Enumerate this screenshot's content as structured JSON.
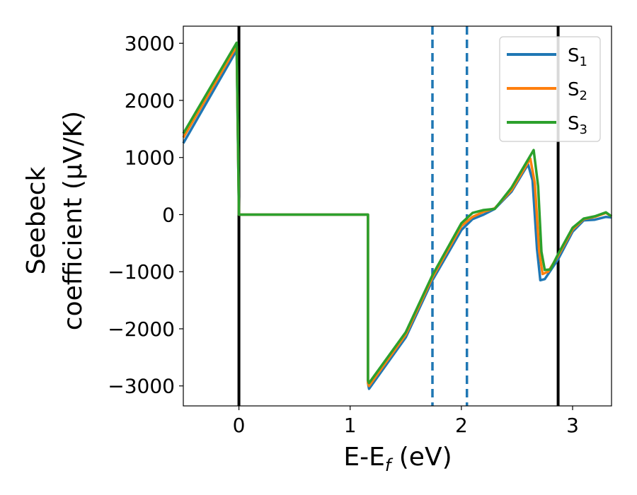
{
  "chart_data": {
    "type": "line",
    "title": "",
    "xlabel": "E-E",
    "xlabel_sub": "f",
    "xlabel_unit": " (eV)",
    "ylabel_line1": "Seebeck",
    "ylabel_line2": "coefficient  (μV/K)",
    "xlim": [
      -0.5,
      3.35
    ],
    "ylim": [
      -3350,
      3300
    ],
    "x_ticks": [
      0,
      1,
      2,
      3
    ],
    "x_tick_labels": [
      "0",
      "1",
      "2",
      "3"
    ],
    "y_ticks": [
      -3000,
      -2000,
      -1000,
      0,
      1000,
      2000,
      3000
    ],
    "y_tick_labels": [
      "−3000",
      "−2000",
      "−1000",
      "0",
      "1000",
      "2000",
      "3000"
    ],
    "grid": false,
    "legend_position": "top-right",
    "vertical_lines": [
      {
        "x": 0.0,
        "style": "solid",
        "color": "#000000"
      },
      {
        "x": 2.87,
        "style": "solid",
        "color": "#000000"
      },
      {
        "x": 1.74,
        "style": "dashed",
        "color": "#1f77b4"
      },
      {
        "x": 2.05,
        "style": "dashed",
        "color": "#1f77b4"
      }
    ],
    "series": [
      {
        "name": "S",
        "sub": "1",
        "color": "#1f77b4",
        "points": [
          [
            -0.5,
            1250
          ],
          [
            -0.02,
            2880
          ],
          [
            0.0,
            0
          ],
          [
            1.16,
            0
          ],
          [
            1.16,
            -2950
          ],
          [
            1.17,
            -3050
          ],
          [
            1.5,
            -2150
          ],
          [
            1.74,
            -1150
          ],
          [
            2.0,
            -270
          ],
          [
            2.1,
            -80
          ],
          [
            2.2,
            0
          ],
          [
            2.3,
            100
          ],
          [
            2.45,
            400
          ],
          [
            2.6,
            880
          ],
          [
            2.64,
            600
          ],
          [
            2.68,
            -600
          ],
          [
            2.71,
            -1150
          ],
          [
            2.75,
            -1130
          ],
          [
            2.87,
            -780
          ],
          [
            3.0,
            -300
          ],
          [
            3.1,
            -100
          ],
          [
            3.2,
            -90
          ],
          [
            3.3,
            -40
          ],
          [
            3.35,
            -50
          ]
        ]
      },
      {
        "name": "S",
        "sub": "2",
        "color": "#ff7f0e",
        "points": [
          [
            -0.5,
            1350
          ],
          [
            -0.02,
            2950
          ],
          [
            0.0,
            0
          ],
          [
            1.16,
            0
          ],
          [
            1.16,
            -2950
          ],
          [
            1.17,
            -3000
          ],
          [
            1.5,
            -2100
          ],
          [
            1.74,
            -1100
          ],
          [
            2.0,
            -200
          ],
          [
            2.1,
            -40
          ],
          [
            2.2,
            50
          ],
          [
            2.3,
            110
          ],
          [
            2.45,
            430
          ],
          [
            2.62,
            980
          ],
          [
            2.66,
            550
          ],
          [
            2.7,
            -650
          ],
          [
            2.73,
            -1040
          ],
          [
            2.78,
            -1000
          ],
          [
            2.87,
            -720
          ],
          [
            3.0,
            -260
          ],
          [
            3.1,
            -80
          ],
          [
            3.2,
            -40
          ],
          [
            3.3,
            30
          ],
          [
            3.35,
            -30
          ]
        ]
      },
      {
        "name": "S",
        "sub": "3",
        "color": "#2ca02c",
        "points": [
          [
            -0.5,
            1420
          ],
          [
            -0.02,
            3010
          ],
          [
            0.0,
            0
          ],
          [
            1.16,
            0
          ],
          [
            1.16,
            -2900
          ],
          [
            1.17,
            -2950
          ],
          [
            1.5,
            -2060
          ],
          [
            1.74,
            -1060
          ],
          [
            2.0,
            -150
          ],
          [
            2.1,
            30
          ],
          [
            2.2,
            80
          ],
          [
            2.3,
            100
          ],
          [
            2.45,
            470
          ],
          [
            2.65,
            1130
          ],
          [
            2.69,
            500
          ],
          [
            2.72,
            -650
          ],
          [
            2.75,
            -970
          ],
          [
            2.8,
            -960
          ],
          [
            2.87,
            -690
          ],
          [
            3.0,
            -230
          ],
          [
            3.1,
            -70
          ],
          [
            3.2,
            -30
          ],
          [
            3.3,
            40
          ],
          [
            3.35,
            -30
          ]
        ]
      }
    ]
  }
}
